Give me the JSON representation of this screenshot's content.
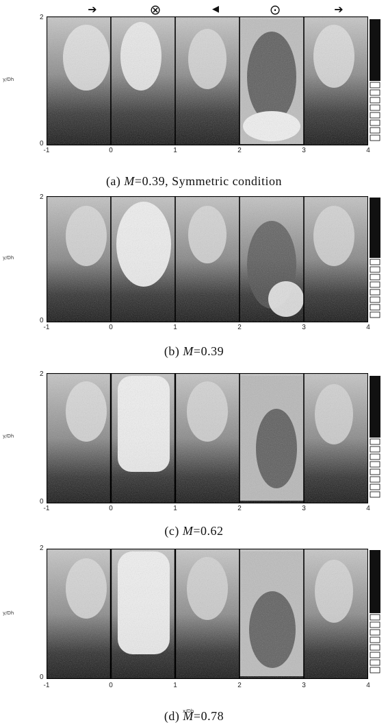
{
  "top_symbols": [
    {
      "icon": "right-arrow-icon",
      "glyph": "➔"
    },
    {
      "icon": "circle-cross-icon",
      "glyph": "⊗"
    },
    {
      "icon": "left-arrow-icon",
      "glyph": "◀"
    },
    {
      "icon": "circle-dot-icon",
      "glyph": "⊙"
    },
    {
      "icon": "right-arrow-icon",
      "glyph": "➔"
    }
  ],
  "y_axis_label": "y/Dh",
  "x_axis_label": "x/Dh",
  "y_ticks": [
    "2",
    "0"
  ],
  "x_ticks": [
    "-1",
    "0",
    "1",
    "2",
    "3",
    "4"
  ],
  "panels": [
    {
      "letter": "(a)",
      "variable": "M",
      "value": "=0.39",
      "suffix": ", Symmetric condition"
    },
    {
      "letter": "(b)",
      "variable": "M",
      "value": "=0.39",
      "suffix": ""
    },
    {
      "letter": "(c)",
      "variable": "M",
      "value": "=0.62",
      "suffix": ""
    },
    {
      "letter": "(d)",
      "variable": "M",
      "value": "=0.78",
      "suffix": ""
    }
  ]
}
